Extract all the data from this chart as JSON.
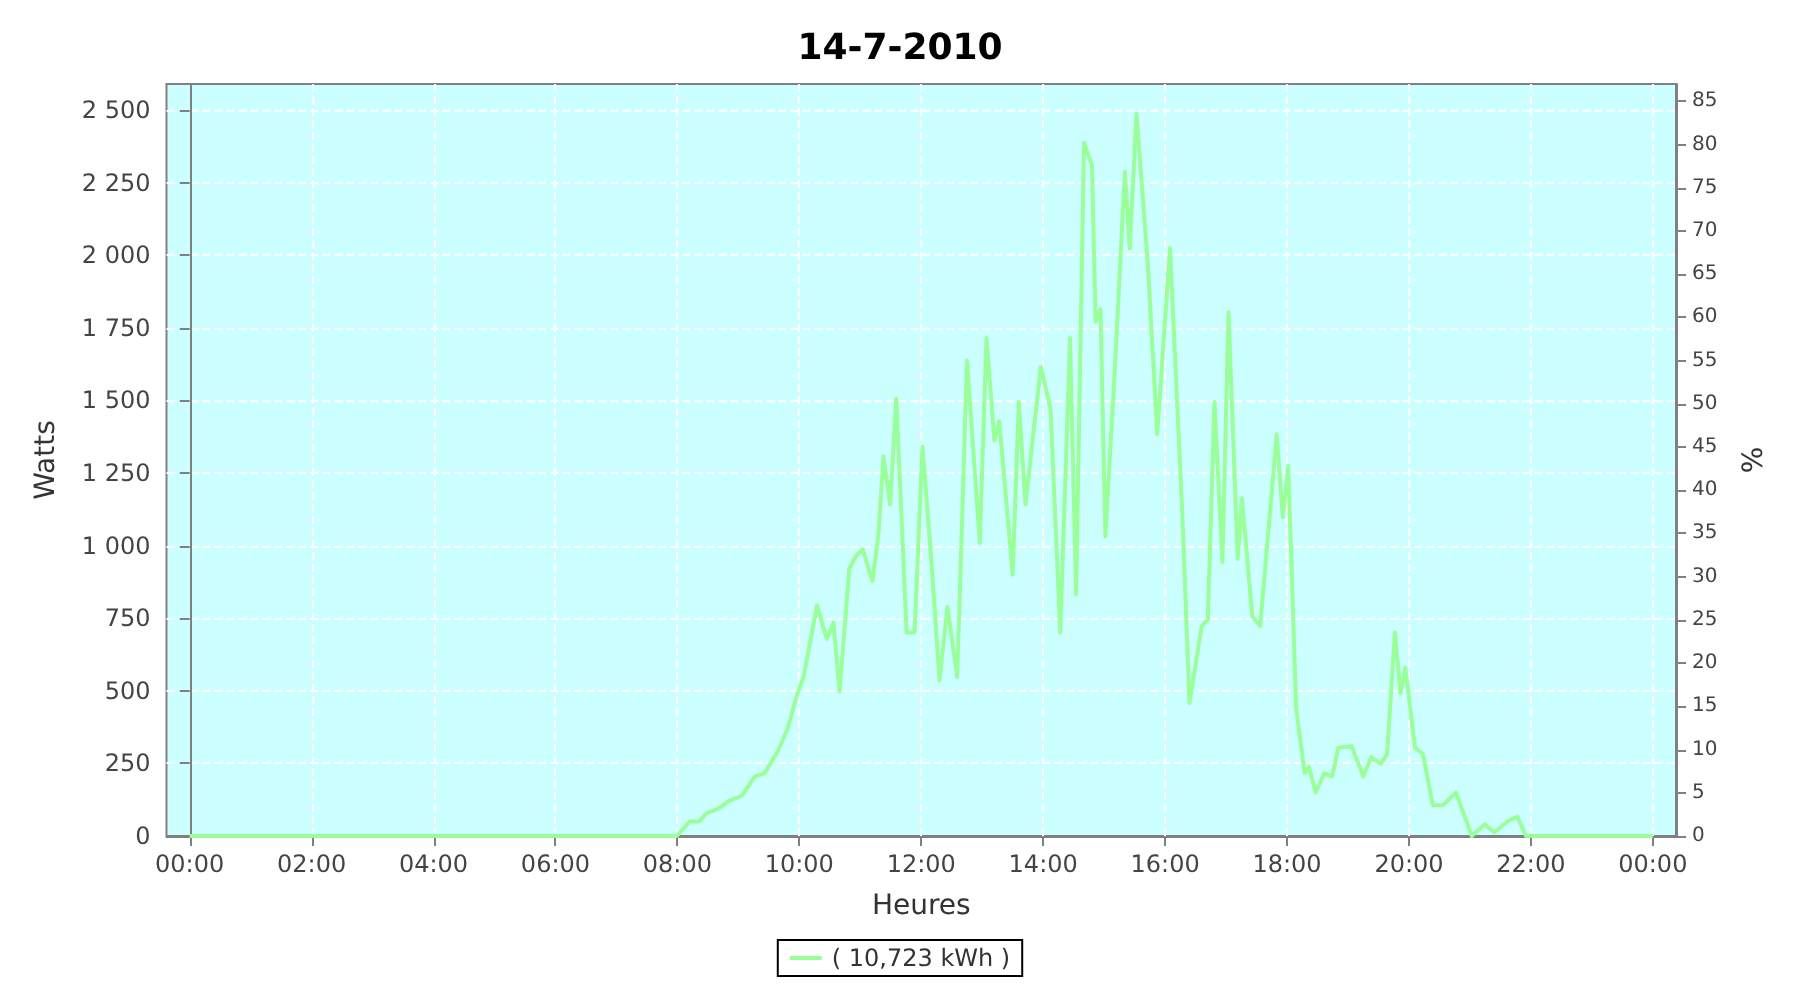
{
  "chart_data": {
    "type": "line",
    "title": "14-7-2010",
    "xlabel": "Heures",
    "ylabel": "Watts",
    "y2label": "%",
    "xlim": [
      -0.38,
      24.38
    ],
    "xticks": [
      {
        "value": 0,
        "label": "00:00"
      },
      {
        "value": 2,
        "label": "02:00"
      },
      {
        "value": 4,
        "label": "04:00"
      },
      {
        "value": 6,
        "label": "06:00"
      },
      {
        "value": 8,
        "label": "08:00"
      },
      {
        "value": 10,
        "label": "10:00"
      },
      {
        "value": 12,
        "label": "12:00"
      },
      {
        "value": 14,
        "label": "14:00"
      },
      {
        "value": 16,
        "label": "16:00"
      },
      {
        "value": 18,
        "label": "18:00"
      },
      {
        "value": 20,
        "label": "20:00"
      },
      {
        "value": 22,
        "label": "22:00"
      },
      {
        "value": 24,
        "label": "00:00"
      }
    ],
    "ylim": [
      0,
      2590
    ],
    "yticks": [
      0,
      250,
      500,
      750,
      {
        "value": 1000,
        "label": "1 000"
      },
      {
        "value": 1250,
        "label": "1 250"
      },
      {
        "value": 1500,
        "label": "1 500"
      },
      {
        "value": 1750,
        "label": "1 750"
      },
      {
        "value": 2000,
        "label": "2 000"
      },
      {
        "value": 2250,
        "label": "2 250"
      },
      {
        "value": 2500,
        "label": "2 500"
      }
    ],
    "y2lim": [
      0,
      87
    ],
    "y2ticks": [
      0,
      5,
      10,
      15,
      20,
      25,
      30,
      35,
      40,
      45,
      50,
      55,
      60,
      65,
      70,
      75,
      80,
      85
    ],
    "grid": true,
    "legend": "bottom",
    "marker": "none",
    "line_style": "solid",
    "series": [
      {
        "name": "( 10,723 kWh )",
        "color": "#99ff99",
        "x": [
          0,
          7.99,
          8.2,
          8.36,
          8.47,
          8.68,
          8.85,
          9.06,
          9.27,
          9.43,
          9.65,
          9.81,
          9.97,
          10.07,
          10.29,
          10.45,
          10.56,
          10.66,
          10.82,
          10.93,
          11.04,
          11.2,
          11.3,
          11.38,
          11.49,
          11.59,
          11.76,
          11.89,
          12.02,
          12.16,
          12.3,
          12.43,
          12.59,
          12.75,
          12.96,
          13.07,
          13.2,
          13.28,
          13.5,
          13.6,
          13.71,
          13.96,
          14.12,
          14.28,
          14.44,
          14.54,
          14.67,
          14.8,
          14.86,
          14.94,
          15.02,
          15.18,
          15.34,
          15.42,
          15.53,
          15.72,
          15.87,
          16.08,
          16.28,
          16.4,
          16.6,
          16.7,
          16.81,
          16.94,
          17.04,
          17.19,
          17.26,
          17.43,
          17.56,
          17.83,
          17.93,
          18.02,
          18.15,
          18.29,
          18.36,
          18.47,
          18.61,
          18.74,
          18.84,
          19.06,
          19.25,
          19.38,
          19.54,
          19.64,
          19.77,
          19.86,
          19.94,
          20.1,
          20.23,
          20.39,
          20.56,
          20.77,
          21.03,
          21.24,
          21.4,
          21.62,
          21.78,
          21.92,
          24
        ],
        "values": [
          0,
          0,
          50,
          50,
          77,
          95,
          121,
          139,
          205,
          216,
          293,
          370,
          491,
          547,
          794,
          679,
          734,
          498,
          921,
          966,
          987,
          878,
          1043,
          1308,
          1142,
          1506,
          701,
          701,
          1341,
          966,
          536,
          789,
          547,
          1638,
          1010,
          1715,
          1362,
          1429,
          900,
          1495,
          1142,
          1616,
          1473,
          701,
          1715,
          833,
          2388,
          2310,
          1771,
          1814,
          1032,
          1627,
          2288,
          2024,
          2487,
          1958,
          1384,
          2024,
          1120,
          458,
          723,
          745,
          1495,
          944,
          1804,
          954,
          1164,
          756,
          723,
          1384,
          1098,
          1274,
          437,
          216,
          238,
          150,
          216,
          205,
          304,
          309,
          205,
          271,
          249,
          282,
          701,
          491,
          580,
          304,
          282,
          106,
          106,
          150,
          0,
          40,
          13,
          51,
          66,
          0,
          0
        ]
      }
    ]
  }
}
